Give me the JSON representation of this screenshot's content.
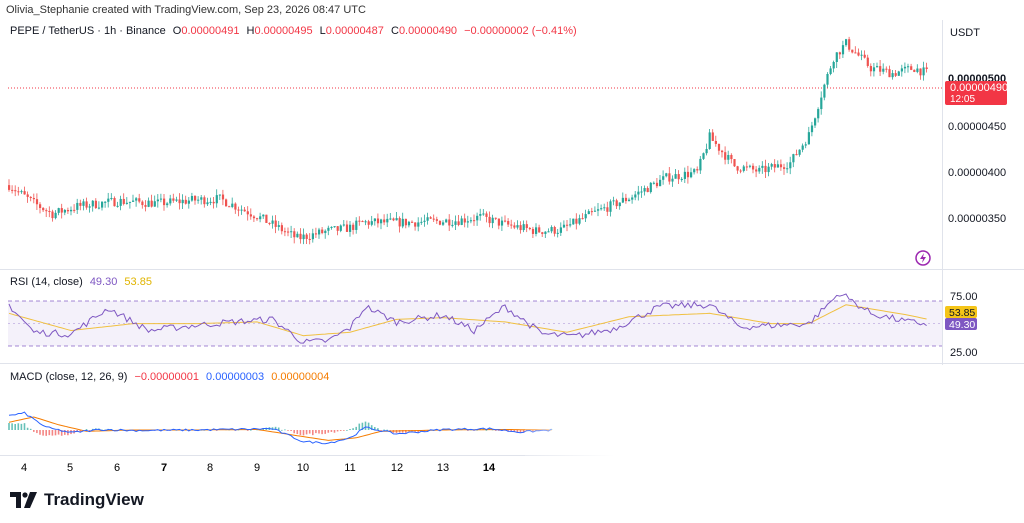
{
  "header": {
    "credit": "Olivia_Stephanie created with TradingView.com, Sep 23, 2026 08:47 UTC"
  },
  "price_legend": {
    "symbol": "PEPE / TetherUS · 1h · Binance",
    "o_label": "O",
    "o": "0.00000491",
    "h_label": "H",
    "h": "0.00000495",
    "l_label": "L",
    "l": "0.00000487",
    "c_label": "C",
    "c": "0.00000490",
    "change": "−0.00000002 (−0.41%)"
  },
  "price_axis": {
    "currency": "USDT",
    "ticks": [
      "0.00000500",
      "0.00000450",
      "0.00000400",
      "0.00000350"
    ],
    "last_price": "0.00000490",
    "countdown": "12:05"
  },
  "rsi_legend": {
    "label": "RSI (14, close)",
    "rsi": "49.30",
    "ma": "53.85"
  },
  "rsi_axis": {
    "ticks": [
      "75.00",
      "25.00"
    ],
    "rsi_badge": "49.30",
    "ma_badge": "53.85"
  },
  "macd_legend": {
    "label": "MACD (close, 12, 26, 9)",
    "hist": "−0.00000001",
    "macd": "0.00000003",
    "signal": "0.00000004"
  },
  "time_axis": {
    "labels": [
      "4",
      "5",
      "6",
      "7",
      "8",
      "9",
      "10",
      "11",
      "12",
      "13",
      "14"
    ]
  },
  "brand": {
    "name": "TradingView"
  },
  "colors": {
    "up": "#26a69a",
    "down": "#ef5350",
    "rsi": "#7e57c2",
    "rsi_ma": "#f0c040",
    "macd": "#2962ff",
    "signal": "#f57c00",
    "last_price_badge": "#f23645"
  },
  "chart_data": [
    {
      "type": "candlestick",
      "title": "PEPE / TetherUS · 1h · Binance",
      "ylabel": "USDT",
      "ylim": [
        3.1e-06,
        5.4e-06
      ],
      "x_labels": [
        "4",
        "5",
        "6",
        "7",
        "8",
        "9",
        "10",
        "11",
        "12",
        "13",
        "14"
      ],
      "close_anchors": [
        [
          0,
          3.85e-06
        ],
        [
          8,
          3.68e-06
        ],
        [
          14,
          3.58e-06
        ],
        [
          22,
          3.65e-06
        ],
        [
          35,
          3.7e-06
        ],
        [
          48,
          3.68e-06
        ],
        [
          60,
          3.71e-06
        ],
        [
          68,
          3.72e-06
        ],
        [
          80,
          3.56e-06
        ],
        [
          93,
          3.35e-06
        ],
        [
          103,
          3.42e-06
        ],
        [
          106,
          3.43e-06
        ],
        [
          110,
          3.45e-06
        ],
        [
          114,
          3.5e-06
        ],
        [
          130,
          3.5e-06
        ],
        [
          145,
          3.52e-06
        ],
        [
          152,
          3.55e-06
        ],
        [
          160,
          3.48e-06
        ],
        [
          170,
          3.42e-06
        ],
        [
          178,
          3.43e-06
        ],
        [
          188,
          3.58e-06
        ],
        [
          200,
          3.73e-06
        ],
        [
          212,
          3.92e-06
        ],
        [
          222,
          3.97e-06
        ],
        [
          226,
          4.3e-06
        ],
        [
          234,
          4.03e-06
        ],
        [
          242,
          3.98e-06
        ],
        [
          252,
          4.06e-06
        ],
        [
          258,
          4.32e-06
        ],
        [
          262,
          4.7e-06
        ],
        [
          266,
          5.05e-06
        ],
        [
          270,
          5.18e-06
        ],
        [
          278,
          4.95e-06
        ],
        [
          285,
          4.9e-06
        ],
        [
          292,
          4.95e-06
        ],
        [
          296,
          4.9e-06
        ]
      ],
      "high": "0.00000495",
      "low": "0.00000487",
      "close": "0.00000490"
    },
    {
      "type": "line",
      "title": "RSI (14, close)",
      "ylim": [
        10,
        95
      ],
      "bands": [
        30,
        70
      ],
      "series": [
        {
          "name": "RSI",
          "anchors": [
            [
              0,
              72
            ],
            [
              8,
              40
            ],
            [
              20,
              38
            ],
            [
              32,
              68
            ],
            [
              45,
              42
            ],
            [
              60,
              48
            ],
            [
              72,
              52
            ],
            [
              85,
              55
            ],
            [
              95,
              28
            ],
            [
              103,
              30
            ],
            [
              110,
              45
            ],
            [
              115,
              70
            ],
            [
              125,
              52
            ],
            [
              140,
              60
            ],
            [
              150,
              42
            ],
            [
              160,
              70
            ],
            [
              172,
              38
            ],
            [
              182,
              35
            ],
            [
              195,
              44
            ],
            [
              210,
              70
            ],
            [
              226,
              72
            ],
            [
              236,
              46
            ],
            [
              246,
              48
            ],
            [
              258,
              50
            ],
            [
              268,
              86
            ],
            [
              278,
              62
            ],
            [
              290,
              52
            ],
            [
              298,
              49.3
            ]
          ]
        },
        {
          "name": "MA",
          "anchors": [
            [
              0,
              62
            ],
            [
              20,
              42
            ],
            [
              40,
              50
            ],
            [
              60,
              50
            ],
            [
              80,
              52
            ],
            [
              95,
              36
            ],
            [
              110,
              40
            ],
            [
              125,
              55
            ],
            [
              140,
              57
            ],
            [
              160,
              52
            ],
            [
              180,
              40
            ],
            [
              200,
              58
            ],
            [
              226,
              62
            ],
            [
              246,
              50
            ],
            [
              258,
              50
            ],
            [
              270,
              72
            ],
            [
              290,
              60
            ],
            [
              298,
              53.85
            ]
          ]
        }
      ]
    },
    {
      "type": "line",
      "title": "MACD (close, 12, 26, 9)",
      "ylim": [
        -1,
        1
      ],
      "series": [
        {
          "name": "MACD",
          "anchors": [
            [
              0,
              0.55
            ],
            [
              5,
              0.65
            ],
            [
              12,
              0.1
            ],
            [
              20,
              -0.1
            ],
            [
              30,
              0.02
            ],
            [
              40,
              -0.02
            ],
            [
              60,
              0.0
            ],
            [
              70,
              0.02
            ],
            [
              85,
              0.05
            ],
            [
              95,
              -0.45
            ],
            [
              103,
              -0.5
            ],
            [
              110,
              -0.3
            ],
            [
              115,
              0.1
            ],
            [
              125,
              -0.15
            ],
            [
              140,
              0.02
            ],
            [
              155,
              0.05
            ],
            [
              165,
              -0.08
            ],
            [
              175,
              0.0
            ]
          ]
        },
        {
          "name": "Signal",
          "anchors": [
            [
              0,
              0.3
            ],
            [
              8,
              0.5
            ],
            [
              16,
              0.2
            ],
            [
              25,
              -0.05
            ],
            [
              40,
              0.0
            ],
            [
              60,
              0.0
            ],
            [
              80,
              0.02
            ],
            [
              92,
              -0.2
            ],
            [
              103,
              -0.4
            ],
            [
              112,
              -0.3
            ],
            [
              120,
              -0.05
            ],
            [
              140,
              0.0
            ],
            [
              160,
              0.02
            ],
            [
              175,
              0.0
            ]
          ]
        }
      ]
    }
  ]
}
